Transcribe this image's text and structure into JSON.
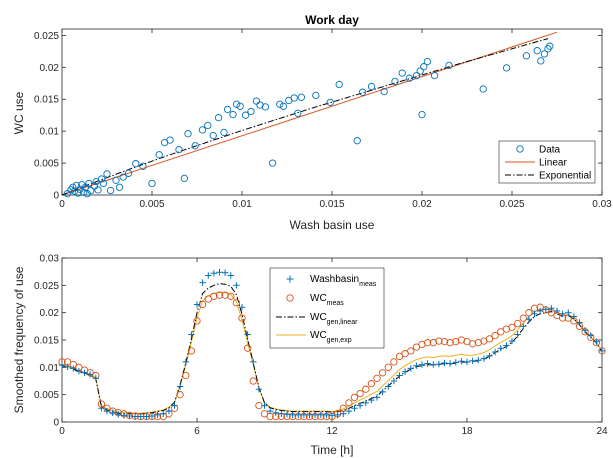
{
  "colors": {
    "blue": "#0072BD",
    "orange": "#D95319",
    "yellow": "#EDB120",
    "black": "#000000",
    "axis": "#262626"
  },
  "chart_data": [
    {
      "type": "scatter",
      "title": "Work day",
      "xlabel": "Wash basin use",
      "ylabel": "WC use",
      "xlim": [
        0,
        0.03
      ],
      "ylim": [
        0,
        0.026
      ],
      "xticks": [
        0,
        0.005,
        0.01,
        0.015,
        0.02,
        0.025,
        0.03
      ],
      "xticklabels": [
        "0",
        "0.005",
        "0.01",
        "0.015",
        "0.02",
        "0.025",
        "0.03"
      ],
      "yticks": [
        0,
        0.005,
        0.01,
        0.015,
        0.02,
        0.025
      ],
      "yticklabels": [
        "0",
        "0.005",
        "0.01",
        "0.015",
        "0.02",
        "0.025"
      ],
      "grid": false,
      "legend": "bottom-right",
      "series": [
        {
          "name": "Data",
          "marker": "circle",
          "color": "#0072BD",
          "x": [
            0.0003,
            0.0005,
            0.0006,
            0.0007,
            0.0008,
            0.0009,
            0.001,
            0.0011,
            0.0012,
            0.0013,
            0.0014,
            0.0015,
            0.0016,
            0.0018,
            0.0019,
            0.002,
            0.0022,
            0.0023,
            0.0025,
            0.0027,
            0.003,
            0.0032,
            0.0034,
            0.0037,
            0.0041,
            0.0045,
            0.005,
            0.0054,
            0.0057,
            0.006,
            0.0065,
            0.0068,
            0.007,
            0.0074,
            0.0078,
            0.0081,
            0.0084,
            0.0087,
            0.009,
            0.0092,
            0.0095,
            0.0097,
            0.0099,
            0.0102,
            0.0105,
            0.0108,
            0.011,
            0.0113,
            0.0117,
            0.0121,
            0.0123,
            0.0126,
            0.0129,
            0.0131,
            0.0133,
            0.0141,
            0.0149,
            0.0154,
            0.0164,
            0.0167,
            0.0172,
            0.0179,
            0.0185,
            0.0189,
            0.0193,
            0.0197,
            0.0199,
            0.02,
            0.0201,
            0.0203,
            0.0207,
            0.0215,
            0.0234,
            0.0247,
            0.0258,
            0.0264,
            0.0266,
            0.0268,
            0.027,
            0.0271
          ],
          "y": [
            0.0002,
            0.0008,
            0.0012,
            0.0006,
            0.0015,
            0.0003,
            0.0009,
            0.0016,
            0.0004,
            0.0012,
            0.0002,
            0.0018,
            0.0007,
            0.0014,
            0.0021,
            0.0008,
            0.0025,
            0.0018,
            0.0033,
            0.0007,
            0.0023,
            0.0012,
            0.0028,
            0.0034,
            0.0049,
            0.0045,
            0.0018,
            0.0063,
            0.0082,
            0.0086,
            0.0071,
            0.0026,
            0.0096,
            0.0077,
            0.0102,
            0.0109,
            0.0093,
            0.0121,
            0.0098,
            0.0134,
            0.0126,
            0.0142,
            0.0139,
            0.0125,
            0.0131,
            0.0147,
            0.0141,
            0.0138,
            0.005,
            0.0142,
            0.0139,
            0.0148,
            0.0152,
            0.0128,
            0.0153,
            0.0156,
            0.0145,
            0.0173,
            0.0085,
            0.0161,
            0.017,
            0.0162,
            0.0178,
            0.0191,
            0.0183,
            0.0187,
            0.0194,
            0.0126,
            0.0201,
            0.0209,
            0.0187,
            0.0203,
            0.0166,
            0.0199,
            0.0218,
            0.0226,
            0.021,
            0.0221,
            0.0229,
            0.0233
          ]
        },
        {
          "name": "Linear",
          "line": "solid",
          "color": "#D95319",
          "x": [
            0,
            0.0275
          ],
          "y": [
            0,
            0.0255
          ]
        },
        {
          "name": "Exponential",
          "line": "dashdot",
          "color": "#000000",
          "x": [
            0,
            0.002,
            0.004,
            0.006,
            0.008,
            0.01,
            0.012,
            0.014,
            0.016,
            0.018,
            0.02,
            0.022,
            0.024,
            0.026,
            0.027
          ],
          "y": [
            0,
            0.0022,
            0.0043,
            0.0063,
            0.0082,
            0.0101,
            0.0119,
            0.0137,
            0.0154,
            0.0171,
            0.0188,
            0.0205,
            0.0221,
            0.0237,
            0.0245
          ]
        }
      ]
    },
    {
      "type": "line",
      "title": "",
      "xlabel": "Time [h]",
      "ylabel": "Smoothed frequency of use",
      "xlim": [
        0,
        24
      ],
      "ylim": [
        0,
        0.03
      ],
      "xticks": [
        0,
        6,
        12,
        18,
        24
      ],
      "xticklabels": [
        "0",
        "6",
        "12",
        "18",
        "24"
      ],
      "yticks": [
        0,
        0.005,
        0.01,
        0.015,
        0.02,
        0.025,
        0.03
      ],
      "yticklabels": [
        "0",
        "0.005",
        "0.01",
        "0.015",
        "0.02",
        "0.025",
        "0.03"
      ],
      "grid": false,
      "legend": "top-center",
      "legend_entries": [
        {
          "base": "Washbasin",
          "sub": "meas"
        },
        {
          "base": "WC",
          "sub": "meas"
        },
        {
          "base": "WC",
          "sub": "gen,linear"
        },
        {
          "base": "WC",
          "sub": "gen,exp"
        }
      ],
      "x": [
        0,
        0.25,
        0.5,
        0.75,
        1,
        1.25,
        1.5,
        1.75,
        2,
        2.25,
        2.5,
        2.75,
        3,
        3.25,
        3.5,
        3.75,
        4,
        4.25,
        4.5,
        4.75,
        5,
        5.25,
        5.5,
        5.75,
        6,
        6.25,
        6.5,
        6.75,
        7,
        7.25,
        7.5,
        7.75,
        8,
        8.25,
        8.5,
        8.75,
        9,
        9.25,
        9.5,
        9.75,
        10,
        10.25,
        10.5,
        10.75,
        11,
        11.25,
        11.5,
        11.75,
        12,
        12.25,
        12.5,
        12.75,
        13,
        13.25,
        13.5,
        13.75,
        14,
        14.25,
        14.5,
        14.75,
        15,
        15.25,
        15.5,
        15.75,
        16,
        16.25,
        16.5,
        16.75,
        17,
        17.25,
        17.5,
        17.75,
        18,
        18.25,
        18.5,
        18.75,
        19,
        19.25,
        19.5,
        19.75,
        20,
        20.25,
        20.5,
        20.75,
        21,
        21.25,
        21.5,
        21.75,
        22,
        22.25,
        22.5,
        22.75,
        23,
        23.25,
        23.5,
        23.75,
        24
      ],
      "series": [
        {
          "name": "Washbasin_meas",
          "marker": "plus",
          "color": "#0072BD",
          "values": [
            0.0104,
            0.0101,
            0.0098,
            0.0093,
            0.009,
            0.0087,
            0.008,
            0.0025,
            0.002,
            0.0017,
            0.0014,
            0.0012,
            0.0011,
            0.001,
            0.001,
            0.001,
            0.0011,
            0.0013,
            0.0015,
            0.002,
            0.003,
            0.0065,
            0.011,
            0.016,
            0.0215,
            0.0255,
            0.0268,
            0.0272,
            0.0274,
            0.0273,
            0.0268,
            0.025,
            0.021,
            0.016,
            0.011,
            0.006,
            0.003,
            0.002,
            0.0017,
            0.0015,
            0.0014,
            0.0013,
            0.0013,
            0.0013,
            0.0013,
            0.0013,
            0.0013,
            0.0013,
            0.0012,
            0.0013,
            0.0015,
            0.002,
            0.0025,
            0.003,
            0.0035,
            0.004,
            0.0045,
            0.0055,
            0.0065,
            0.0075,
            0.0085,
            0.0092,
            0.0098,
            0.0103,
            0.0105,
            0.0107,
            0.0105,
            0.0106,
            0.0108,
            0.0107,
            0.0109,
            0.0111,
            0.011,
            0.0112,
            0.0113,
            0.0116,
            0.0121,
            0.0128,
            0.0135,
            0.014,
            0.0148,
            0.016,
            0.0175,
            0.0188,
            0.0198,
            0.0203,
            0.0206,
            0.0208,
            0.0203,
            0.0198,
            0.02,
            0.0193,
            0.0182,
            0.0168,
            0.0158,
            0.0147,
            0.013
          ]
        },
        {
          "name": "WC_meas",
          "marker": "circle",
          "color": "#D95319",
          "values": [
            0.011,
            0.011,
            0.0105,
            0.01,
            0.0095,
            0.009,
            0.0085,
            0.0033,
            0.0025,
            0.002,
            0.0017,
            0.0015,
            0.0012,
            0.0011,
            0.001,
            0.001,
            0.001,
            0.001,
            0.001,
            0.0015,
            0.0025,
            0.005,
            0.0085,
            0.013,
            0.0185,
            0.0215,
            0.0225,
            0.023,
            0.0232,
            0.0232,
            0.023,
            0.0218,
            0.019,
            0.0135,
            0.0075,
            0.003,
            0.0015,
            0.001,
            0.001,
            0.001,
            0.001,
            0.001,
            0.001,
            0.001,
            0.001,
            0.001,
            0.001,
            0.001,
            0.001,
            0.0015,
            0.0025,
            0.0035,
            0.0045,
            0.0052,
            0.006,
            0.007,
            0.008,
            0.009,
            0.01,
            0.011,
            0.012,
            0.0125,
            0.013,
            0.0137,
            0.0142,
            0.0145,
            0.0145,
            0.0148,
            0.0147,
            0.0145,
            0.0147,
            0.015,
            0.0147,
            0.0143,
            0.0145,
            0.0148,
            0.0152,
            0.0158,
            0.0165,
            0.017,
            0.0173,
            0.018,
            0.019,
            0.02,
            0.0208,
            0.021,
            0.0205,
            0.02,
            0.0195,
            0.019,
            0.019,
            0.0185,
            0.0175,
            0.0165,
            0.0155,
            0.0145,
            0.013
          ]
        },
        {
          "name": "WC_gen,linear",
          "line": "dashdot",
          "color": "#000000",
          "values": [
            0.0103,
            0.01,
            0.0097,
            0.0092,
            0.0089,
            0.0086,
            0.0079,
            0.0028,
            0.0022,
            0.0019,
            0.0016,
            0.0015,
            0.0015,
            0.0015,
            0.0015,
            0.0016,
            0.0017,
            0.0019,
            0.0021,
            0.0026,
            0.0036,
            0.0068,
            0.0108,
            0.0152,
            0.02,
            0.0235,
            0.0245,
            0.025,
            0.0253,
            0.0252,
            0.0248,
            0.0233,
            0.0197,
            0.0152,
            0.0108,
            0.0063,
            0.0035,
            0.0026,
            0.0023,
            0.0021,
            0.002,
            0.0019,
            0.0019,
            0.0019,
            0.0019,
            0.0019,
            0.0019,
            0.0019,
            0.0018,
            0.0019,
            0.0021,
            0.0025,
            0.003,
            0.0034,
            0.0038,
            0.0043,
            0.0047,
            0.0057,
            0.0066,
            0.0075,
            0.0084,
            0.0091,
            0.0097,
            0.0101,
            0.0103,
            0.0105,
            0.0104,
            0.0105,
            0.0107,
            0.0106,
            0.0108,
            0.011,
            0.0109,
            0.0111,
            0.0112,
            0.0115,
            0.012,
            0.0127,
            0.0133,
            0.0138,
            0.0146,
            0.0157,
            0.0171,
            0.0183,
            0.0193,
            0.0198,
            0.02,
            0.0202,
            0.0198,
            0.0193,
            0.0195,
            0.0188,
            0.0178,
            0.0165,
            0.0155,
            0.0145,
            0.0129
          ]
        },
        {
          "name": "WC_gen,exp",
          "line": "solid",
          "color": "#EDB120",
          "values": [
            0.0105,
            0.0102,
            0.0099,
            0.0094,
            0.0091,
            0.0088,
            0.0081,
            0.003,
            0.0024,
            0.0021,
            0.0018,
            0.0017,
            0.0016,
            0.0016,
            0.0016,
            0.0017,
            0.0018,
            0.002,
            0.0022,
            0.0027,
            0.0036,
            0.0066,
            0.0104,
            0.0146,
            0.019,
            0.0222,
            0.0231,
            0.0235,
            0.0237,
            0.0237,
            0.0233,
            0.022,
            0.0187,
            0.0145,
            0.0105,
            0.0062,
            0.0036,
            0.0027,
            0.0024,
            0.0022,
            0.0021,
            0.002,
            0.002,
            0.002,
            0.002,
            0.002,
            0.002,
            0.002,
            0.0019,
            0.0021,
            0.0024,
            0.0029,
            0.0035,
            0.004,
            0.0045,
            0.0051,
            0.0056,
            0.0066,
            0.0076,
            0.0086,
            0.0096,
            0.0103,
            0.0109,
            0.0114,
            0.0117,
            0.0119,
            0.0118,
            0.012,
            0.0121,
            0.012,
            0.0122,
            0.0124,
            0.0122,
            0.0122,
            0.0124,
            0.0127,
            0.0132,
            0.0139,
            0.0146,
            0.0151,
            0.0158,
            0.0168,
            0.0181,
            0.0193,
            0.0202,
            0.0206,
            0.0206,
            0.0206,
            0.0201,
            0.0195,
            0.0196,
            0.0189,
            0.0178,
            0.0166,
            0.0156,
            0.0145,
            0.0129
          ]
        }
      ]
    }
  ]
}
